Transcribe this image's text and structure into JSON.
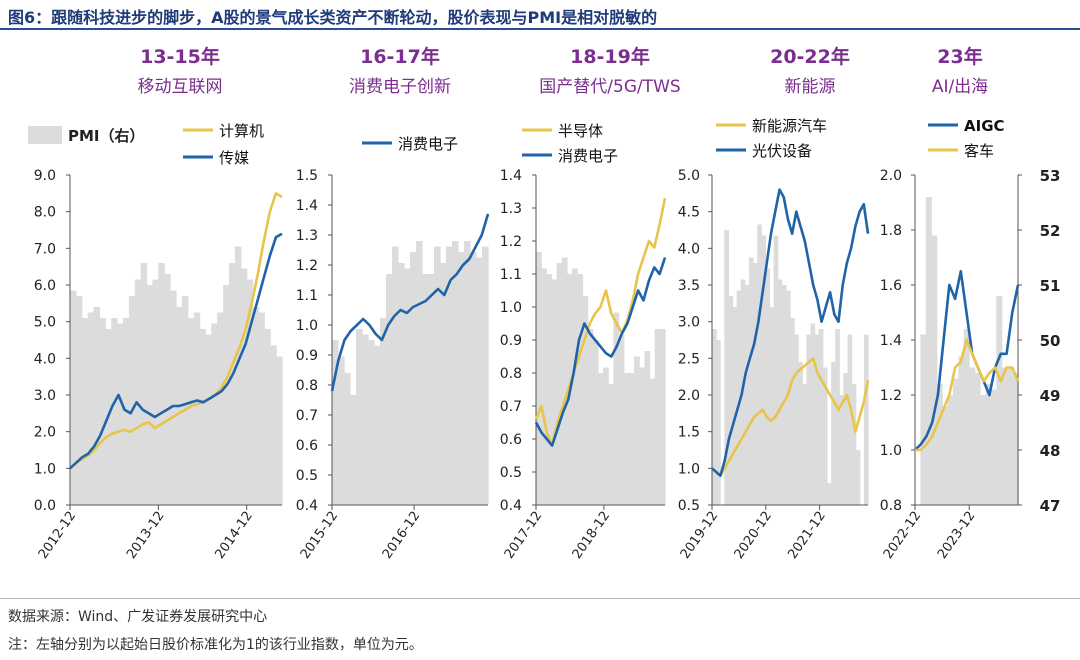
{
  "figure": {
    "title": "图6：跟随科技进步的脚步，A股的景气成长类资产不断轮动，股价表现与PMI是相对脱敏的",
    "source": "数据来源：Wind、广发证券发展研究中心",
    "note": "注：左轴分别为以起始日股价标准化为1的该行业指数，单位为元。"
  },
  "eras": [
    {
      "years": "13-15年",
      "theme": "移动互联网"
    },
    {
      "years": "16-17年",
      "theme": "消费电子创新"
    },
    {
      "years": "18-19年",
      "theme": "国产替代/5G/TWS"
    },
    {
      "years": "20-22年",
      "theme": "新能源"
    },
    {
      "years": "23年",
      "theme": "AI/出海"
    }
  ],
  "colors": {
    "gold": "#E8C44A",
    "blue": "#1F63A8",
    "pmi": "#DCDCDC",
    "axis": "#555555"
  },
  "pmi_legend": "PMI（右）",
  "chart_data": [
    {
      "type": "line",
      "panel": "13-15年",
      "ylim": [
        0,
        9
      ],
      "yticks": [
        "9.0",
        "8.0",
        "7.0",
        "6.0",
        "5.0",
        "4.0",
        "3.0",
        "2.0",
        "1.0",
        "0.0"
      ],
      "xticks": [
        "2012-12",
        "2013-12",
        "2014-12"
      ],
      "pmi": [
        50.9,
        50.8,
        50.4,
        50.5,
        50.6,
        50.4,
        50.2,
        50.4,
        50.3,
        50.4,
        50.8,
        51.1,
        51.4,
        51.0,
        51.1,
        51.4,
        51.2,
        50.9,
        50.6,
        50.8,
        50.4,
        50.5,
        50.2,
        50.1,
        50.3,
        50.5,
        51.0,
        51.4,
        51.7,
        51.3,
        51.1,
        50.6,
        50.5,
        50.2,
        49.9,
        49.7
      ],
      "series": [
        {
          "name": "计算机",
          "color": "gold",
          "values": [
            1.0,
            1.15,
            1.25,
            1.35,
            1.5,
            1.7,
            1.85,
            1.95,
            2.0,
            2.05,
            2.0,
            2.1,
            2.2,
            2.25,
            2.1,
            2.2,
            2.3,
            2.4,
            2.5,
            2.6,
            2.7,
            2.75,
            2.8,
            2.9,
            3.0,
            3.2,
            3.5,
            3.9,
            4.3,
            4.8,
            5.5,
            6.3,
            7.2,
            8.0,
            8.5,
            8.4
          ]
        },
        {
          "name": "传媒",
          "color": "blue",
          "values": [
            1.0,
            1.15,
            1.3,
            1.4,
            1.6,
            1.9,
            2.3,
            2.7,
            3.0,
            2.6,
            2.5,
            2.8,
            2.6,
            2.5,
            2.4,
            2.5,
            2.6,
            2.7,
            2.7,
            2.75,
            2.8,
            2.85,
            2.8,
            2.9,
            3.0,
            3.1,
            3.3,
            3.6,
            4.0,
            4.4,
            5.0,
            5.6,
            6.2,
            6.8,
            7.3,
            7.4
          ]
        }
      ]
    },
    {
      "type": "line",
      "panel": "16-17年",
      "ylim": [
        0.4,
        1.5
      ],
      "yticks": [
        "1.5",
        "1.4",
        "1.3",
        "1.2",
        "1.1",
        "1.0",
        "0.9",
        "0.8",
        "0.7",
        "0.6",
        "0.5",
        "0.4"
      ],
      "xticks": [
        "2015-12",
        "2016-12"
      ],
      "pmi": [
        50.0,
        49.7,
        49.4,
        49.0,
        50.2,
        50.1,
        50.0,
        49.9,
        50.4,
        51.2,
        51.7,
        51.4,
        51.3,
        51.6,
        51.8,
        51.2,
        51.2,
        51.7,
        51.4,
        51.7,
        51.8,
        51.6,
        51.8,
        51.6,
        51.5,
        51.7
      ],
      "series": [
        {
          "name": "消费电子",
          "color": "blue",
          "values": [
            0.78,
            0.88,
            0.95,
            0.98,
            1.0,
            1.02,
            1.0,
            0.97,
            0.95,
            1.0,
            1.03,
            1.05,
            1.04,
            1.06,
            1.07,
            1.08,
            1.1,
            1.12,
            1.1,
            1.15,
            1.17,
            1.2,
            1.22,
            1.26,
            1.3,
            1.37
          ]
        }
      ]
    },
    {
      "type": "line",
      "panel": "18-19年",
      "ylim": [
        0.4,
        1.4
      ],
      "yticks": [
        "1.4",
        "1.3",
        "1.2",
        "1.1",
        "1.0",
        "0.9",
        "0.8",
        "0.7",
        "0.6",
        "0.5",
        "0.4"
      ],
      "xticks": [
        "2017-12",
        "2018-12"
      ],
      "pmi": [
        51.6,
        51.3,
        51.2,
        51.1,
        51.4,
        51.5,
        51.2,
        51.3,
        51.2,
        50.8,
        50.2,
        50.0,
        49.4,
        49.5,
        49.2,
        50.5,
        50.1,
        49.4,
        49.4,
        49.7,
        49.5,
        49.8,
        49.3,
        50.2,
        50.2
      ],
      "series": [
        {
          "name": "半导体",
          "color": "gold",
          "values": [
            0.66,
            0.7,
            0.62,
            0.58,
            0.65,
            0.7,
            0.75,
            0.8,
            0.85,
            0.9,
            0.95,
            0.98,
            1.0,
            1.05,
            0.98,
            0.95,
            0.92,
            0.96,
            1.02,
            1.1,
            1.15,
            1.2,
            1.18,
            1.25,
            1.33
          ]
        },
        {
          "name": "消费电子",
          "color": "blue",
          "values": [
            0.65,
            0.62,
            0.6,
            0.58,
            0.63,
            0.68,
            0.72,
            0.8,
            0.9,
            0.95,
            0.92,
            0.9,
            0.88,
            0.86,
            0.85,
            0.88,
            0.92,
            0.95,
            1.0,
            1.05,
            1.02,
            1.08,
            1.12,
            1.1,
            1.15
          ]
        }
      ]
    },
    {
      "type": "line",
      "panel": "20-22年",
      "ylim": [
        0.5,
        5.0
      ],
      "yticks": [
        "5.0",
        "4.5",
        "4.0",
        "3.5",
        "3.0",
        "2.5",
        "2.0",
        "1.5",
        "1.0",
        "0.5"
      ],
      "xticks": [
        "2019-12",
        "2020-12",
        "2021-12"
      ],
      "pmi": [
        50.2,
        50.0,
        35.7,
        52.0,
        50.8,
        50.6,
        50.9,
        51.1,
        51.0,
        51.5,
        51.4,
        52.1,
        51.9,
        51.3,
        50.6,
        51.9,
        51.1,
        51.0,
        50.9,
        50.4,
        50.1,
        49.6,
        49.2,
        50.1,
        50.3,
        50.1,
        50.2,
        49.5,
        47.4,
        49.6,
        50.2,
        49.0,
        49.4,
        50.1,
        49.2,
        48.0,
        47.0,
        50.1
      ],
      "series": [
        {
          "name": "新能源汽车",
          "color": "gold",
          "values": [
            1.0,
            0.95,
            0.9,
            1.0,
            1.1,
            1.2,
            1.3,
            1.4,
            1.5,
            1.6,
            1.7,
            1.75,
            1.8,
            1.7,
            1.65,
            1.7,
            1.8,
            1.9,
            2.0,
            2.2,
            2.3,
            2.35,
            2.4,
            2.45,
            2.5,
            2.3,
            2.2,
            2.1,
            2.0,
            1.9,
            1.8,
            1.9,
            2.0,
            1.8,
            1.5,
            1.7,
            1.9,
            2.2
          ]
        },
        {
          "name": "光伏设备",
          "color": "blue",
          "values": [
            1.0,
            0.95,
            0.9,
            1.1,
            1.4,
            1.6,
            1.8,
            2.0,
            2.3,
            2.5,
            2.7,
            3.0,
            3.4,
            3.8,
            4.2,
            4.5,
            4.8,
            4.7,
            4.4,
            4.2,
            4.5,
            4.3,
            4.1,
            3.8,
            3.5,
            3.3,
            3.0,
            3.2,
            3.4,
            3.1,
            3.0,
            3.5,
            3.8,
            4.0,
            4.3,
            4.5,
            4.6,
            4.2
          ]
        }
      ]
    },
    {
      "type": "line",
      "panel": "23年",
      "ylim": [
        0.8,
        2.0
      ],
      "yticks": [
        "2.0",
        "1.8",
        "1.6",
        "1.4",
        "1.2",
        "1.0",
        "0.8"
      ],
      "y2lim": [
        47,
        53
      ],
      "y2ticks": [
        "53",
        "52",
        "51",
        "50",
        "49",
        "48",
        "47"
      ],
      "xticks": [
        "2022-12",
        "2023-12"
      ],
      "pmi": [
        47.0,
        50.1,
        52.6,
        51.9,
        49.2,
        48.8,
        49.0,
        49.3,
        49.7,
        50.2,
        49.5,
        49.4,
        49.0,
        49.2,
        49.1,
        50.8,
        49.5,
        49.5,
        49.4
      ],
      "series": [
        {
          "name": "AIGC",
          "color": "blue",
          "values": [
            1.0,
            1.02,
            1.05,
            1.1,
            1.2,
            1.4,
            1.6,
            1.55,
            1.65,
            1.5,
            1.35,
            1.3,
            1.25,
            1.2,
            1.3,
            1.35,
            1.35,
            1.5,
            1.6
          ]
        },
        {
          "name": "客车",
          "color": "gold",
          "values": [
            1.0,
            1.0,
            1.02,
            1.05,
            1.1,
            1.15,
            1.2,
            1.3,
            1.32,
            1.4,
            1.35,
            1.3,
            1.25,
            1.28,
            1.3,
            1.25,
            1.3,
            1.3,
            1.25
          ]
        }
      ]
    }
  ]
}
